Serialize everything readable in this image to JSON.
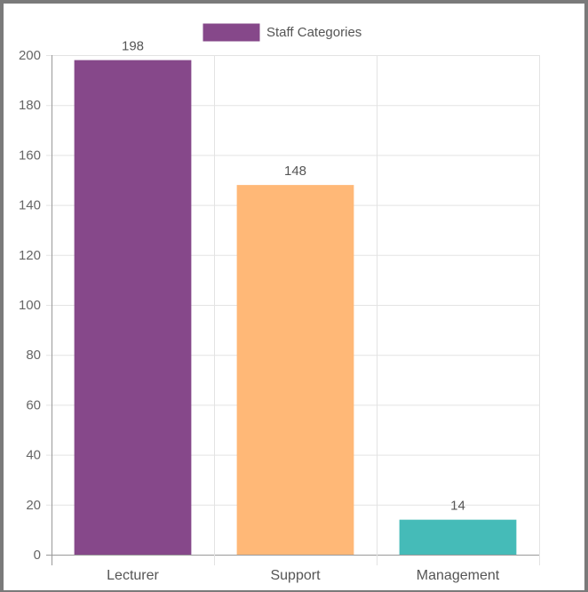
{
  "chart_data": {
    "type": "bar",
    "categories": [
      "Lecturer",
      "Support",
      "Management"
    ],
    "series": [
      {
        "name": "Staff Categories",
        "values": [
          198,
          148,
          14
        ]
      }
    ],
    "bar_colors": [
      "#86488a",
      "#ffb877",
      "#45bbb8"
    ],
    "legend": {
      "label": "Staff Categories",
      "color": "#86488a",
      "placement": "top-center"
    },
    "ylim": [
      0,
      200
    ],
    "y_ticks": [
      0,
      20,
      40,
      60,
      80,
      100,
      120,
      140,
      160,
      180,
      200
    ],
    "data_labels": [
      "198",
      "148",
      "14"
    ],
    "grid": true,
    "title": "",
    "xlabel": "",
    "ylabel": ""
  }
}
